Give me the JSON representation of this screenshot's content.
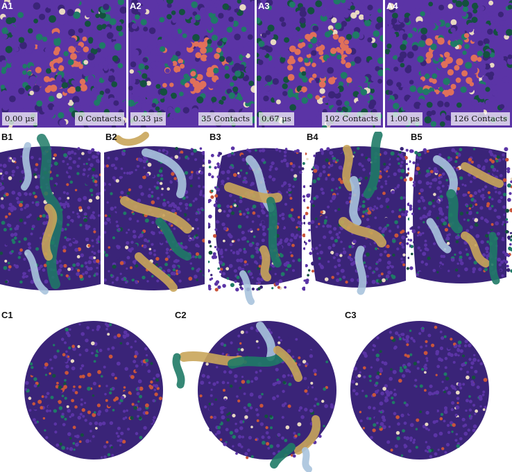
{
  "row_a": {
    "panels": [
      {
        "label": "A1",
        "time": "0.00 μs",
        "contacts": "0 Contacts"
      },
      {
        "label": "A2",
        "time": "0.33 μs",
        "contacts": "35 Contacts"
      },
      {
        "label": "A3",
        "time": "0.67 μs",
        "contacts": "102 Contacts"
      },
      {
        "label": "A4",
        "time": "1.00 μs",
        "contacts": "126 Contacts"
      }
    ]
  },
  "row_b": {
    "labels": [
      "B1",
      "B2",
      "B3",
      "B4",
      "B5"
    ]
  },
  "row_c": {
    "labels": [
      "C1",
      "C2",
      "C3"
    ]
  },
  "colors": {
    "purple": "#5b34a6",
    "dark_purple": "#3a2478",
    "teal": "#1f7a66",
    "dark_green": "#14503f",
    "salmon": "#e0705a",
    "orange_red": "#c9553b",
    "tan": "#c9a55a",
    "light_blue": "#a9c3dd",
    "beige": "#e8d8c2"
  }
}
